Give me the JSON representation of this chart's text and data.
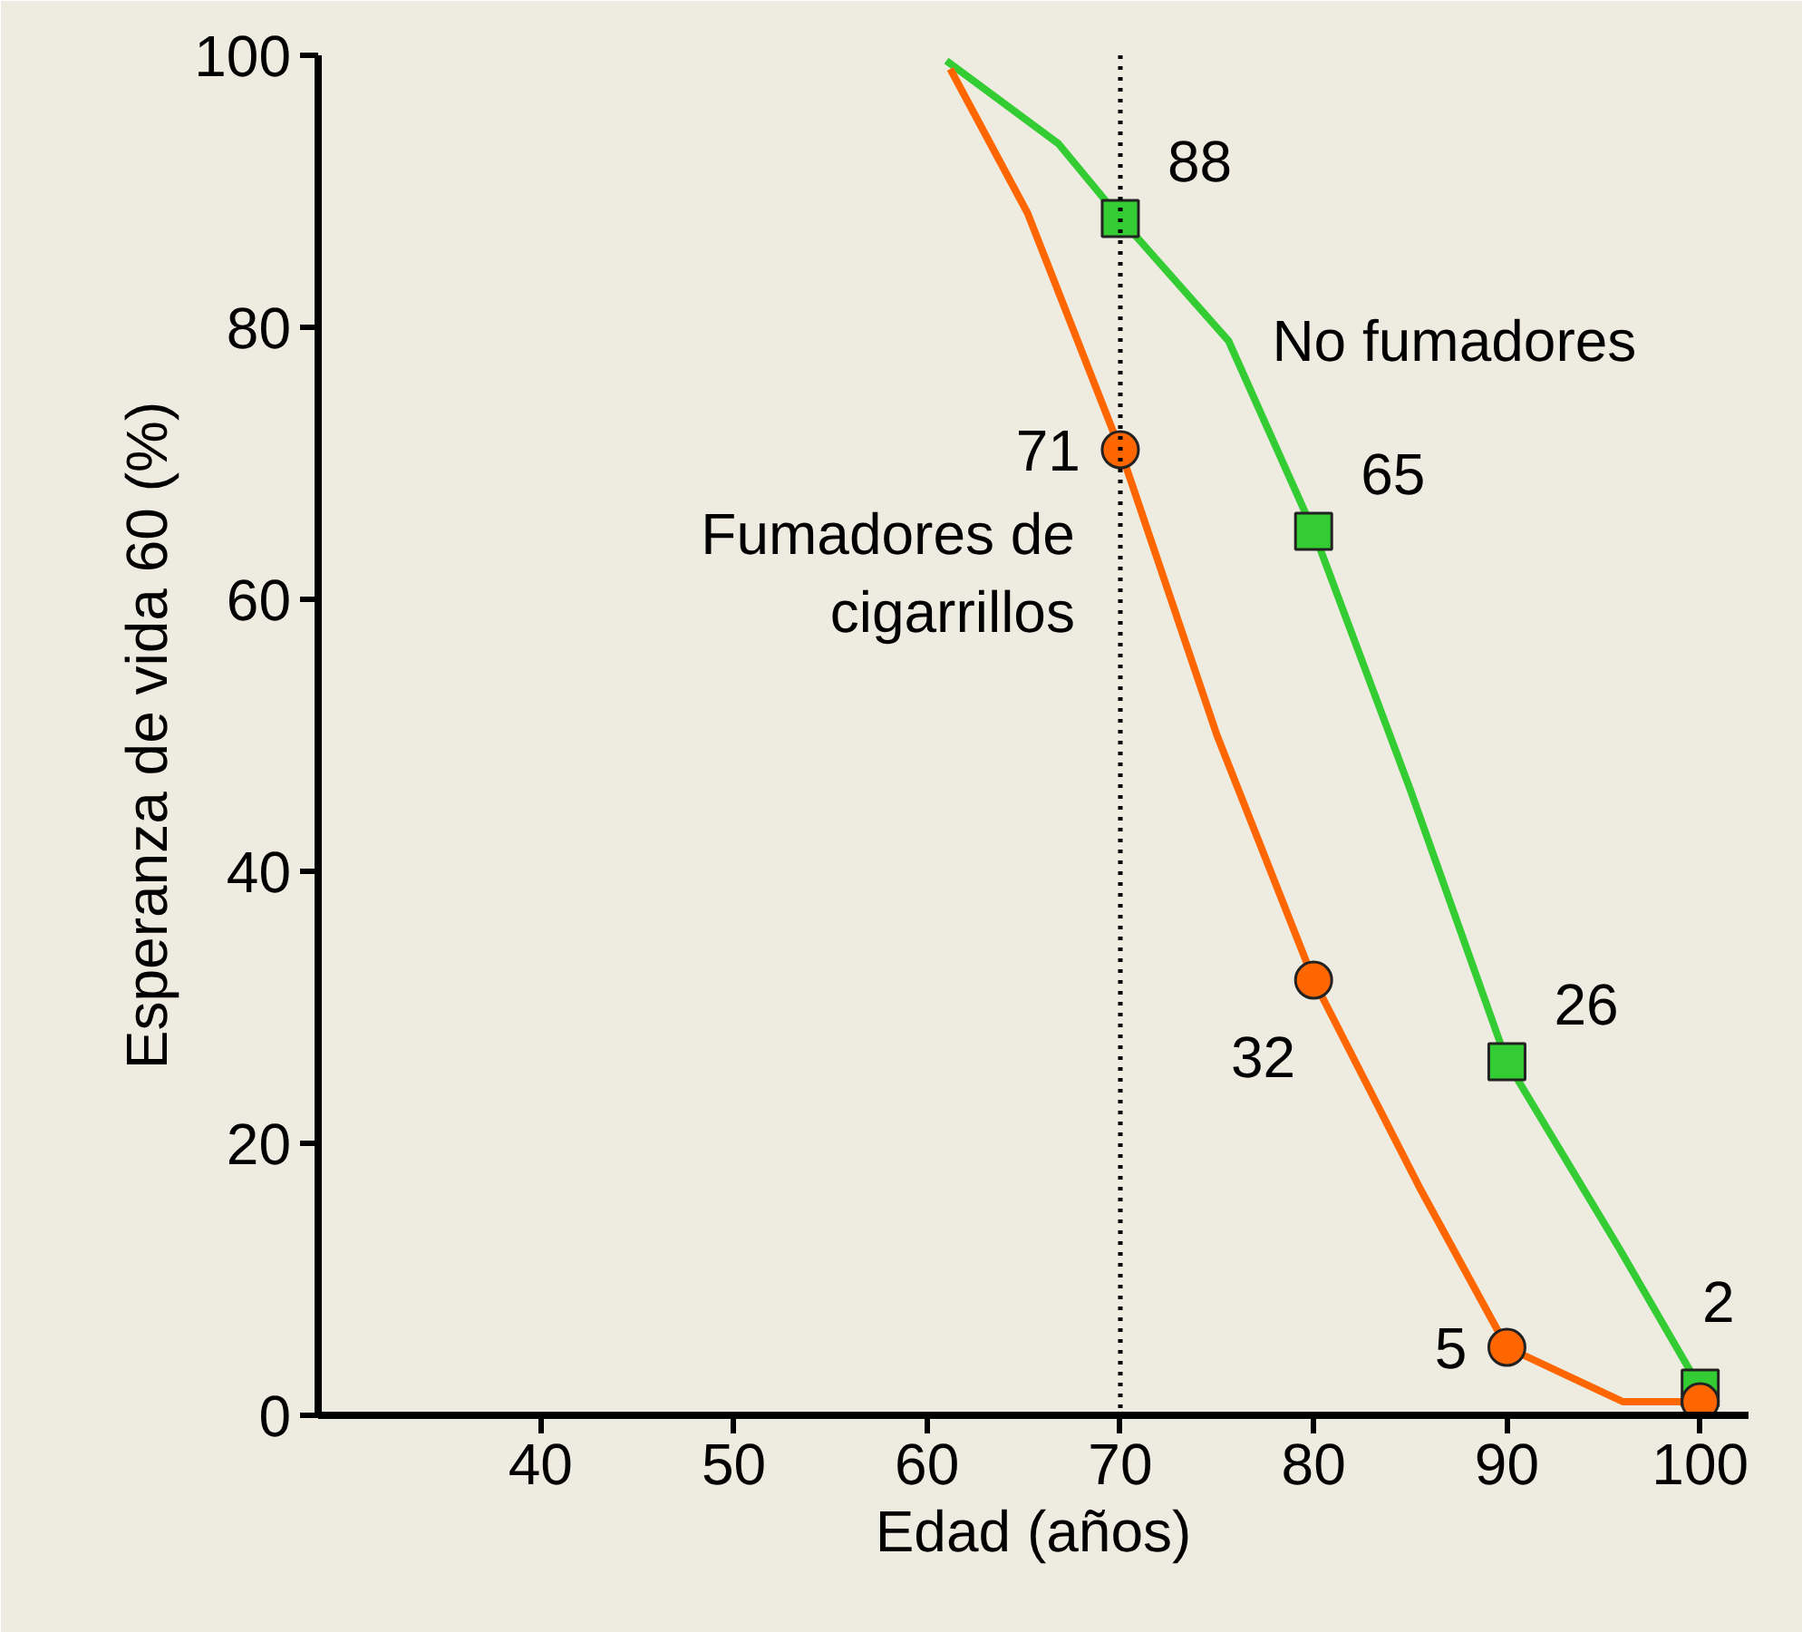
{
  "chart_data": {
    "type": "line",
    "xlabel": "Edad (años)",
    "ylabel": "Esperanza de vida 60 (%)",
    "xlim": [
      28.5,
      102.5
    ],
    "xticks": [
      40,
      50,
      60,
      70,
      80,
      90,
      100
    ],
    "ylim": [
      0,
      100
    ],
    "yticks": [
      0,
      20,
      40,
      60,
      80,
      100
    ],
    "grid": false,
    "legend": false,
    "marker": "none",
    "line_style": "solid",
    "series": [
      {
        "name": "No fumadores",
        "color": "#33cc33",
        "x": [
          61,
          66.8,
          70,
          75.6,
          80,
          85,
          90,
          95.8,
          100
        ],
        "values": [
          99.6,
          93.5,
          88,
          79,
          65,
          46,
          26,
          12.3,
          2
        ]
      },
      {
        "name": "Fumadores de\ncigarrillos",
        "color": "#ff6600",
        "x": [
          61.2,
          65.2,
          70,
          75,
          80,
          85.5,
          90,
          96,
          100
        ],
        "values": [
          99,
          88.4,
          71,
          50,
          32,
          16.7,
          5,
          1,
          1
        ]
      },
      {
        "type": "scatter",
        "marker": "square",
        "color": "#33cc33",
        "x": [
          70,
          80,
          90,
          100
        ],
        "values": [
          88,
          65,
          26,
          2
        ],
        "value_labels": [
          "88",
          "65",
          "26",
          "2"
        ]
      },
      {
        "type": "scatter",
        "marker": "circle",
        "color": "#ff6600",
        "x": [
          70,
          80,
          90,
          100
        ],
        "values": [
          71,
          32,
          5,
          1
        ],
        "value_labels": [
          "71",
          "32",
          "5",
          null
        ]
      }
    ],
    "ref_lines": [
      {
        "axis": "x",
        "value": 70,
        "line_style": "dotted",
        "color": "#000000"
      }
    ]
  }
}
